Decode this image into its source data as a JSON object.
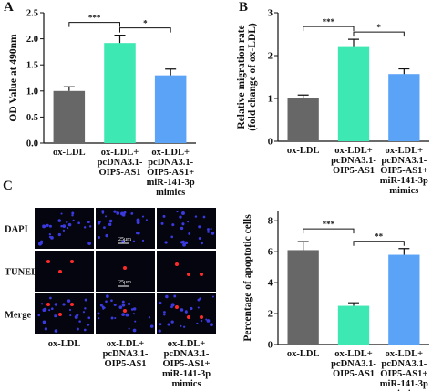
{
  "chart_data": [
    {
      "type": "bar",
      "panel": "A",
      "ylabel": "OD Value at 490nm",
      "categories": [
        "ox-LDL",
        "ox-LDL+\npcDNA3.1-\nOIP5-AS1",
        "ox-LDL+\npcDNA3.1-\nOIP5-AS1+\nmiR-141-3p\nmimics"
      ],
      "values": [
        1.0,
        1.92,
        1.3
      ],
      "errors": [
        0.08,
        0.15,
        0.12
      ],
      "colors": [
        "#676767",
        "#3ee8b2",
        "#5ba3f7"
      ],
      "ylim": [
        0,
        2.5
      ],
      "yticks": [
        {
          "value": 0,
          "label": "0.0"
        },
        {
          "value": 0.5,
          "label": "0.5"
        },
        {
          "value": 1,
          "label": "1.0"
        },
        {
          "value": 1.5,
          "label": "1.5"
        },
        {
          "value": 2,
          "label": "2.0"
        },
        {
          "value": 2.5,
          "label": "2.5"
        }
      ],
      "significance": [
        {
          "from": 0,
          "to": 1,
          "label": "***"
        },
        {
          "from": 1,
          "to": 2,
          "label": "*"
        }
      ]
    },
    {
      "type": "bar",
      "panel": "B",
      "ylabel": "Relative migration rate\n(fold change of ox-LDL)",
      "categories": [
        "ox-LDL",
        "ox-LDL+\npcDNA3.1-\nOIP5-AS1",
        "ox-LDL+\npcDNA3.1-\nOIP5-AS1+\nmiR-141-3p\nmimics"
      ],
      "values": [
        1.0,
        2.2,
        1.57
      ],
      "errors": [
        0.08,
        0.18,
        0.12
      ],
      "colors": [
        "#676767",
        "#3ee8b2",
        "#5ba3f7"
      ],
      "ylim": [
        0,
        3
      ],
      "yticks": [
        0,
        1,
        2,
        3
      ],
      "significance": [
        {
          "from": 0,
          "to": 1,
          "label": "***"
        },
        {
          "from": 1,
          "to": 2,
          "label": "*"
        }
      ]
    },
    {
      "type": "bar",
      "ylabel": "Percentage of apoptotic cells",
      "categories": [
        "ox-LDL",
        "ox-LDL+\npcDNA3.1-\nOIP5-AS1",
        "ox-LDL+\npcDNA3.1-\nOIP5-AS1+\nmiR-141-3p\nmimics"
      ],
      "values": [
        6.1,
        2.5,
        5.8
      ],
      "errors": [
        0.55,
        0.2,
        0.4
      ],
      "colors": [
        "#676767",
        "#3ee8b2",
        "#5ba3f7"
      ],
      "ylim": [
        0,
        8.6
      ],
      "yticks": [
        0,
        2,
        4,
        6,
        8
      ],
      "significance": [
        {
          "from": 0,
          "to": 1,
          "label": "***"
        },
        {
          "from": 1,
          "to": 2,
          "label": "**"
        }
      ]
    }
  ],
  "images": {
    "panel": "C",
    "rows": [
      "DAPI",
      "TUNEL",
      "Merge"
    ],
    "scale_label": "25μm",
    "columns": [
      "ox-LDL",
      "ox-LDL+\npcDNA3.1-\nOIP5-AS1",
      "ox-LDL+\npcDNA3.1-\nOIP5-AS1+\nmiR-141-3p\nmimics"
    ]
  }
}
